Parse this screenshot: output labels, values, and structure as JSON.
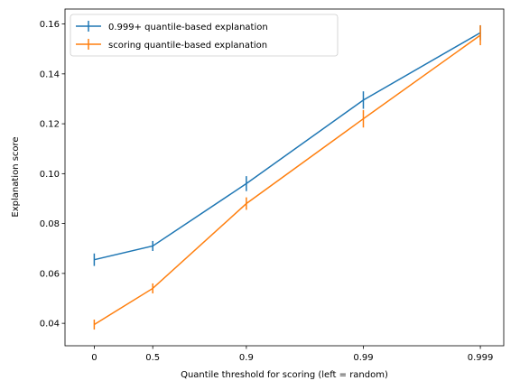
{
  "chart_data": {
    "type": "line",
    "xlabel": "Quantile threshold for scoring (left = random)",
    "ylabel": "Explanation score",
    "x": [
      0,
      0.5,
      0.9,
      0.99,
      0.999
    ],
    "x_tick_labels": [
      "0",
      "0.5",
      "0.9",
      "0.99",
      "0.999"
    ],
    "x_tick_positions": [
      0,
      1,
      2.6,
      4.6,
      6.6
    ],
    "y_ticks": [
      0.04,
      0.06,
      0.08,
      0.1,
      0.12,
      0.14,
      0.16
    ],
    "y_tick_labels": [
      "0.04",
      "0.06",
      "0.08",
      "0.10",
      "0.12",
      "0.14",
      "0.16"
    ],
    "ylim": [
      0.031,
      0.166
    ],
    "xlim": [
      -0.5,
      7.0
    ],
    "grid": false,
    "legend_position": "top-left",
    "series": [
      {
        "name": "0.999+ quantile-based explanation",
        "color": "#1f77b4",
        "values": [
          0.0655,
          0.071,
          0.096,
          0.1295,
          0.1565
        ],
        "errors": [
          0.0025,
          0.002,
          0.003,
          0.0035,
          0.003
        ]
      },
      {
        "name": "scoring quantile-based explanation",
        "color": "#ff7f0e",
        "values": [
          0.0395,
          0.054,
          0.088,
          0.122,
          0.1555
        ],
        "errors": [
          0.002,
          0.002,
          0.0025,
          0.0035,
          0.004
        ]
      }
    ]
  }
}
